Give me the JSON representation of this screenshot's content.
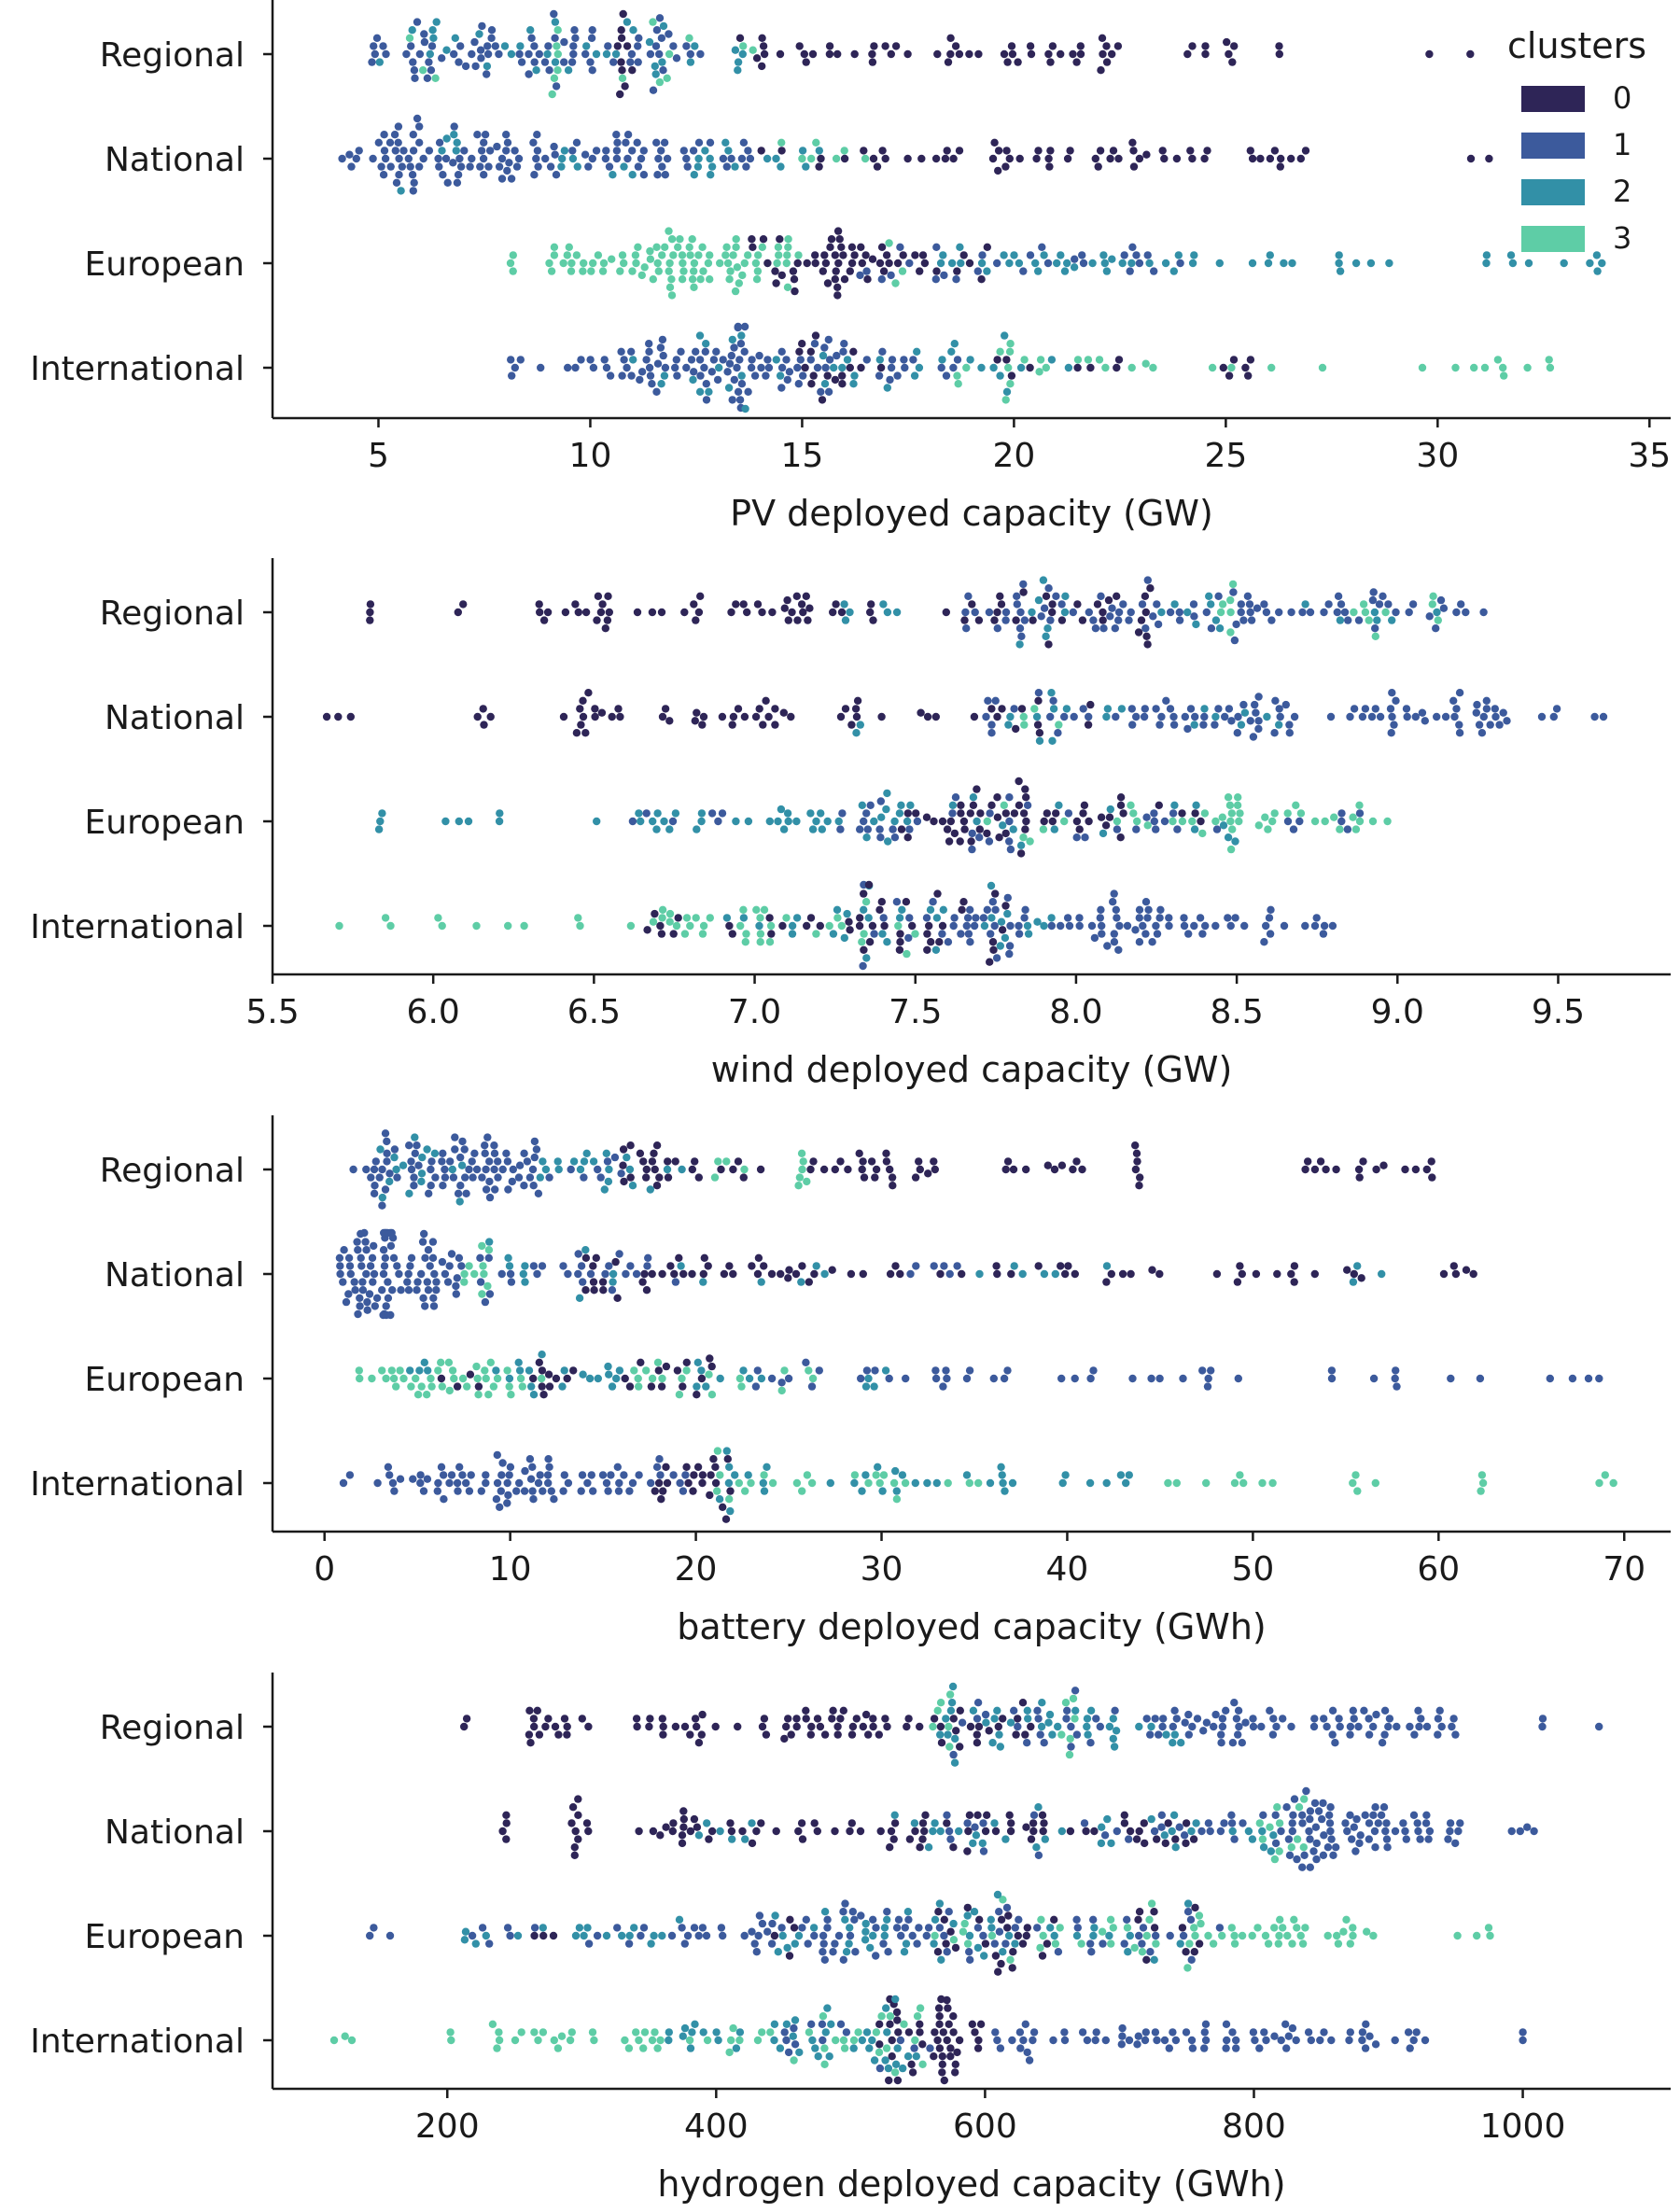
{
  "chart_data": [
    {
      "type": "scatter",
      "subtype": "swarm",
      "xlabel": "PV deployed capacity (GW)",
      "ylabel": "",
      "categories": [
        "Regional",
        "National",
        "European",
        "International"
      ],
      "xlim": [
        2.5,
        35.5
      ],
      "xticks": [
        5,
        10,
        15,
        20,
        25,
        30,
        35
      ],
      "grid": false,
      "legend": {
        "title": "clusters",
        "placement": "top-right",
        "entries": [
          "0",
          "1",
          "2",
          "3"
        ]
      },
      "clusters": [
        {
          "name": "0",
          "color": "#2e2557"
        },
        {
          "name": "1",
          "color": "#3c5a9c"
        },
        {
          "name": "2",
          "color": "#3290a7"
        },
        {
          "name": "3",
          "color": "#5ecda6"
        }
      ],
      "distributions": {
        "Regional": [
          {
            "cluster": 1,
            "values": "4.5-6.5:20,6.5-9:26,9-10.5:18,10.5-12.7:20"
          },
          {
            "cluster": 2,
            "values": "5-7:8,7-9:8,9-11:8,11-12.7:8,13-13.6:4"
          },
          {
            "cluster": 3,
            "values": "5.4-6.5:3,9.1-9.3:6,10.5-12.5:6,13.5-14:2"
          },
          {
            "cluster": 0,
            "values": "10.6-11:10,13.5-18:22,18-20:12,20-23:18,23-26.5:10,29-31:2"
          }
        ],
        "National": [
          {
            "cluster": 1,
            "values": "4-5:6,5-6:28,6-8:30,8-10:24,10-12:26,12-14:14"
          },
          {
            "cluster": 2,
            "values": "5.5-7:6,9-11:8,12-14:10,14-15.5:6"
          },
          {
            "cluster": 3,
            "values": "14.5-15.5:4,15.5-16.5:3"
          },
          {
            "cluster": 0,
            "values": "14-17:10,17-21:20,21-23:12,23-25:8,25.5-27:10,30.7-31.5:2"
          }
        ],
        "European": [
          {
            "cluster": 3,
            "values": "8-9:3,9-11:22,11-12.5:34,12.5-14:26,14-15:10,17-18:3"
          },
          {
            "cluster": 0,
            "values": "13.8-15:12,15-16.5:26,16.5-18:14,18-19.5:6"
          },
          {
            "cluster": 2,
            "values": "18-21:14,21-24:16,24-27:8,27-30:6,30-34:10"
          },
          {
            "cluster": 1,
            "values": "16-19:10,19-22:10,22-24:8"
          }
        ],
        "International": [
          {
            "cluster": 1,
            "values": "8-10:8,10-12:26,12-14:40,14-16:26,16-18:10,18-19:4"
          },
          {
            "cluster": 2,
            "values": "11-13:8,13-15:8,15-17:8,17-19:8,19-22:8"
          },
          {
            "cluster": 0,
            "values": "14.8-16:12,16-17:4,19.5-20.5:4,21.5-22.5:4,24.8-25.7:6"
          },
          {
            "cluster": 3,
            "values": "18.5-19:3,19.5-22.5:14,22.5-25:4,25-28:3,29.5-33:10"
          }
        ]
      }
    },
    {
      "type": "scatter",
      "subtype": "swarm",
      "xlabel": "wind deployed capacity (GW)",
      "ylabel": "",
      "categories": [
        "Regional",
        "National",
        "European",
        "International"
      ],
      "xlim": [
        5.5,
        9.85
      ],
      "xticks": [
        5.5,
        6.0,
        6.5,
        7.0,
        7.5,
        8.0,
        8.5,
        9.0,
        9.5
      ],
      "xticklabels": [
        "5.5",
        "6.0",
        "6.5",
        "7.0",
        "7.5",
        "8.0",
        "8.5",
        "9.0",
        "9.5"
      ],
      "grid": false,
      "distributions": {
        "Regional": [
          {
            "cluster": 0,
            "values": "5.8-5.81:3,6.0-6.1:2,6.3-6.45:6,6.45-6.55:10,6.6-7.0:12,7.0-7.2:14,7.2-7.5:6,7.55-8.0:16,8.0-8.25:14"
          },
          {
            "cluster": 1,
            "values": "7.65-8.0:22,8.0-8.5:30,8.5-9.0:30,9.0-9.3:10"
          },
          {
            "cluster": 2,
            "values": "7.2-7.3:3,7.4-7.5:3,7.7-8.0:8,8.2-8.5:8,8.6-9.2:6"
          },
          {
            "cluster": 3,
            "values": "8.45-8.5:6,8.85-9.0:6,9.1-9.15:3"
          }
        ],
        "National": [
          {
            "cluster": 0,
            "values": "5.65-5.75:3,6.05-6.25:4,6.4-6.6:14,6.7-7.0:12,7.0-7.4:16,7.5-7.9:12,8.0-8.1:2"
          },
          {
            "cluster": 1,
            "values": "7.7-8.0:12,8.0-8.5:26,8.5-9.0:32,9.0-9.35:26,9.4-9.65:5"
          },
          {
            "cluster": 2,
            "values": "7.3-7.4:2,7.75-8.1:10,8.1-8.7:8"
          },
          {
            "cluster": 3,
            "values": "7.8-7.95:4"
          }
        ],
        "European": [
          {
            "cluster": 2,
            "values": "5.83-5.85:3,6.0-6.3:5,6.5-7.0:14,7.0-7.2:10,7.2-7.5:16,7.5-7.9:6,7.9-8.5:10"
          },
          {
            "cluster": 1,
            "values": "6.6-7.0:6,7.2-7.6:14,7.6-8.3:22,8.3-8.9:10"
          },
          {
            "cluster": 0,
            "values": "7.45-7.65:14,7.65-7.85:24,7.85-8.15:16,8.2-8.45:4"
          },
          {
            "cluster": 3,
            "values": "7.7-8.0:6,8.1-8.7:30,8.7-9.0:10"
          }
        ],
        "International": [
          {
            "cluster": 3,
            "values": "5.7-5.9:3,6.0-6.3:5,6.45-6.7:4,6.7-7.0:16,7.0-7.3:12,7.3-7.5:6"
          },
          {
            "cluster": 0,
            "values": "6.6-7.0:8,7.0-7.3:8,7.3-7.6:22,7.6-7.8:8"
          },
          {
            "cluster": 2,
            "values": "6.9-7.3:10,7.3-7.6:12,7.7-7.95:12"
          },
          {
            "cluster": 1,
            "values": "7.3-7.6:10,7.6-8.0:30,8.0-8.3:34,8.3-8.8:24"
          }
        ]
      }
    },
    {
      "type": "scatter",
      "subtype": "swarm",
      "xlabel": "battery deployed capacity (GWh)",
      "ylabel": "",
      "categories": [
        "Regional",
        "National",
        "European",
        "International"
      ],
      "xlim": [
        -2.8,
        72.5
      ],
      "xticks": [
        0,
        10,
        20,
        30,
        40,
        50,
        60,
        70
      ],
      "grid": false,
      "distributions": {
        "Regional": [
          {
            "cluster": 1,
            "values": "0.5-2.5:3,2.5-6:28,6-9:30,9-11.8:24,12-16:8"
          },
          {
            "cluster": 2,
            "values": "2.5-5:8,5-8:8,11-14:8,14-16.5:8,16.5-20:4"
          },
          {
            "cluster": 0,
            "values": "15-19:18,19-24:8,26-33:24,36-41:10,43.5-44:6,52.5-60:16"
          },
          {
            "cluster": 3,
            "values": "21-23:4,25.5-26:6"
          }
        ],
        "National": [
          {
            "cluster": 1,
            "values": "0.8-2:20,2-4:40,4-6:24,6-8:12,8-13:12,13-16:10,16-19:6,26-35:6"
          },
          {
            "cluster": 3,
            "values": "7.5-9:10"
          },
          {
            "cluster": 2,
            "values": "8.5-11:6,13.5-16:4,19-27:6,35-44:6,55-57:3"
          },
          {
            "cluster": 0,
            "values": "14-16:10,17-22:16,22-35:20,35-45:14,48-54:10,55-56:3,60-62:5"
          }
        ],
        "European": [
          {
            "cluster": 3,
            "values": "0.5-3:3,3-6:14,6-9:16,9-12:8,16-21:12,22-27:6"
          },
          {
            "cluster": 0,
            "values": "6-9:4,11-13.5:10,16-21.5:14"
          },
          {
            "cluster": 2,
            "values": "3.5-6:4,9-13:10,13-16:8,20-24:8,27-32:4"
          },
          {
            "cluster": 1,
            "values": "22-27:8,28-36:12,36-45:10,45-50:6,52-58:6,60-70:6"
          }
        ],
        "International": [
          {
            "cluster": 1,
            "values": "0.8-3:3,3-6:10,6-10:28,10-14:24,14-18:16,18-20:6"
          },
          {
            "cluster": 0,
            "values": "17.5-20:10,20-22:12"
          },
          {
            "cluster": 2,
            "values": "19-24:10,27-32:10,32-37:8,37-44:8"
          },
          {
            "cluster": 3,
            "values": "21-26:12,26-31:8,31-36:4,45-53:8,55-58:4,62-63:3,67.5-69.5:3"
          }
        ]
      }
    },
    {
      "type": "scatter",
      "subtype": "swarm",
      "xlabel": "hydrogen deployed capacity (GWh)",
      "ylabel": "",
      "categories": [
        "Regional",
        "National",
        "European",
        "International"
      ],
      "xlim": [
        70,
        1110
      ],
      "xticks": [
        200,
        400,
        600,
        800,
        1000
      ],
      "grid": false,
      "distributions": {
        "Regional": [
          {
            "cluster": 0,
            "values": "210-215:2,260-290:14,300-310:2,340-400:16,400-440:4,450-530:30,540-600:14,600-640:8"
          },
          {
            "cluster": 2,
            "values": "560-640:18,640-700:16,700-760:6"
          },
          {
            "cluster": 3,
            "values": "560-575:6,650-670:6"
          },
          {
            "cluster": 1,
            "values": "560-660:12,660-760:24,760-860:32,860-950:32,1005-1065:3"
          }
        ],
        "National": [
          {
            "cluster": 0,
            "values": "240-245:4,290-305:10,340-400:16,410-500:14,500-600:20,600-700:16,700-760:14"
          },
          {
            "cluster": 2,
            "values": "380-430:6,520-600:10,600-700:10,700-820:14"
          },
          {
            "cluster": 3,
            "values": "800-840:12"
          },
          {
            "cluster": 1,
            "values": "560-700:12,700-820:18,820-860:36,860-900:24,900-960:18,990-1010:4"
          }
        ],
        "European": [
          {
            "cluster": 1,
            "values": "135-165:3,200-270:6,300-380:10,380-440:14,440-500:20,500-560:20,560-640:16,640-720:12,720-780:8"
          },
          {
            "cluster": 2,
            "values": "200-300:8,300-380:10,440-500:12,500-580:16,580-680:14,680-760:8"
          },
          {
            "cluster": 0,
            "values": "260-280:3,440-480:4,560-580:6,580-660:18,700-760:10"
          },
          {
            "cluster": 3,
            "values": "560-620:8,640-700:10,700-780:16,780-840:20,840-900:10,940-980:4"
          }
        ],
        "International": [
          {
            "cluster": 3,
            "values": "110-140:3,200-240:6,250-300:10,300-350:8,350-440:12,440-520:12,520-560:10"
          },
          {
            "cluster": 2,
            "values": "360-440:12,440-520:20,520-560:10"
          },
          {
            "cluster": 1,
            "values": "440-520:10,520-560:4,600-700:20,700-800:28,800-860:16,860-940:14,1000-1000:2"
          },
          {
            "cluster": 0,
            "values": "520-560:18,560-580:24,580-600:6"
          }
        ]
      }
    }
  ]
}
